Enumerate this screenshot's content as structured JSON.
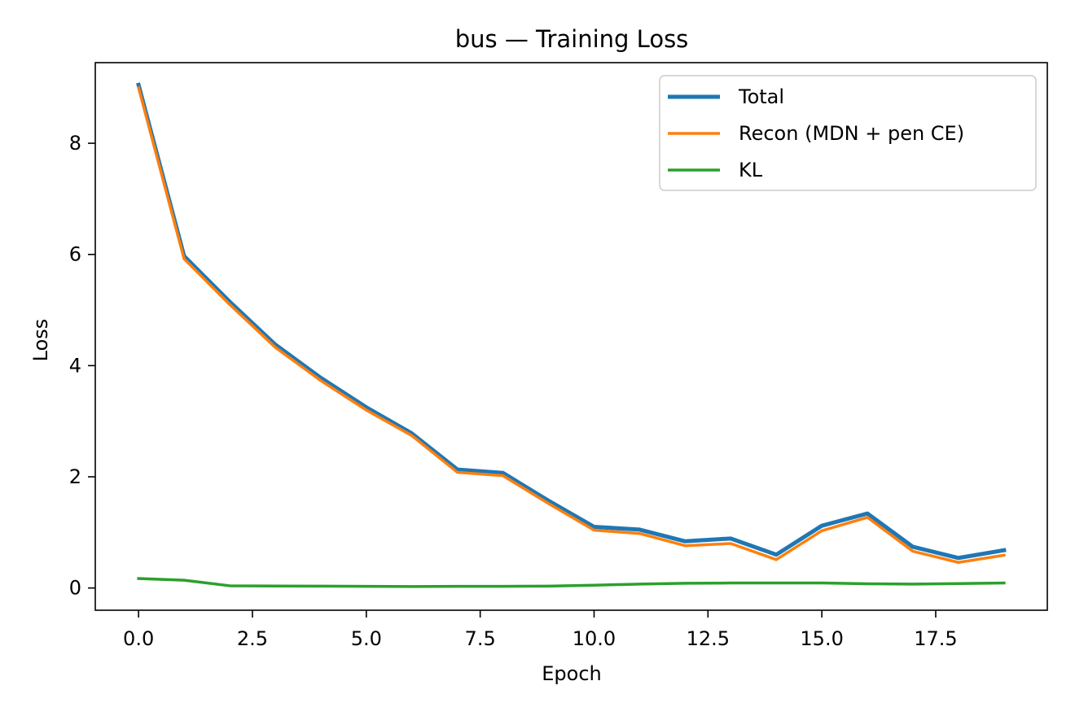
{
  "chart_data": {
    "type": "line",
    "title": "bus — Training Loss",
    "xlabel": "Epoch",
    "ylabel": "Loss",
    "xlim": [
      -0.95,
      19.95
    ],
    "ylim": [
      -0.4,
      9.45
    ],
    "xticks": [
      0,
      2.5,
      5,
      7.5,
      10,
      12.5,
      15,
      17.5
    ],
    "xtick_labels": [
      "0.0",
      "2.5",
      "5.0",
      "7.5",
      "10.0",
      "12.5",
      "15.0",
      "17.5"
    ],
    "yticks": [
      0,
      2,
      4,
      6,
      8
    ],
    "ytick_labels": [
      "0",
      "2",
      "4",
      "6",
      "8"
    ],
    "grid": false,
    "legend_position": "top-right",
    "x": [
      0,
      1,
      2,
      3,
      4,
      5,
      6,
      7,
      8,
      9,
      10,
      11,
      12,
      13,
      14,
      15,
      16,
      17,
      18,
      19
    ],
    "series": [
      {
        "name": "Total",
        "color": "#1f77b4",
        "width": 5,
        "values": [
          9.05,
          5.97,
          5.15,
          4.38,
          3.78,
          3.25,
          2.78,
          2.13,
          2.07,
          1.57,
          1.1,
          1.05,
          0.84,
          0.89,
          0.6,
          1.12,
          1.34,
          0.74,
          0.54,
          0.68
        ]
      },
      {
        "name": "Recon (MDN + pen CE)",
        "color": "#ff7f0e",
        "width": 3.5,
        "values": [
          9.0,
          5.92,
          5.1,
          4.33,
          3.73,
          3.2,
          2.74,
          2.08,
          2.02,
          1.52,
          1.04,
          0.98,
          0.76,
          0.8,
          0.51,
          1.03,
          1.27,
          0.66,
          0.46,
          0.59
        ]
      },
      {
        "name": "KL",
        "color": "#2ca02c",
        "width": 3.5,
        "values": [
          0.17,
          0.14,
          0.04,
          0.035,
          0.033,
          0.03,
          0.027,
          0.03,
          0.03,
          0.034,
          0.05,
          0.07,
          0.085,
          0.09,
          0.09,
          0.09,
          0.075,
          0.07,
          0.08,
          0.09
        ]
      }
    ]
  }
}
